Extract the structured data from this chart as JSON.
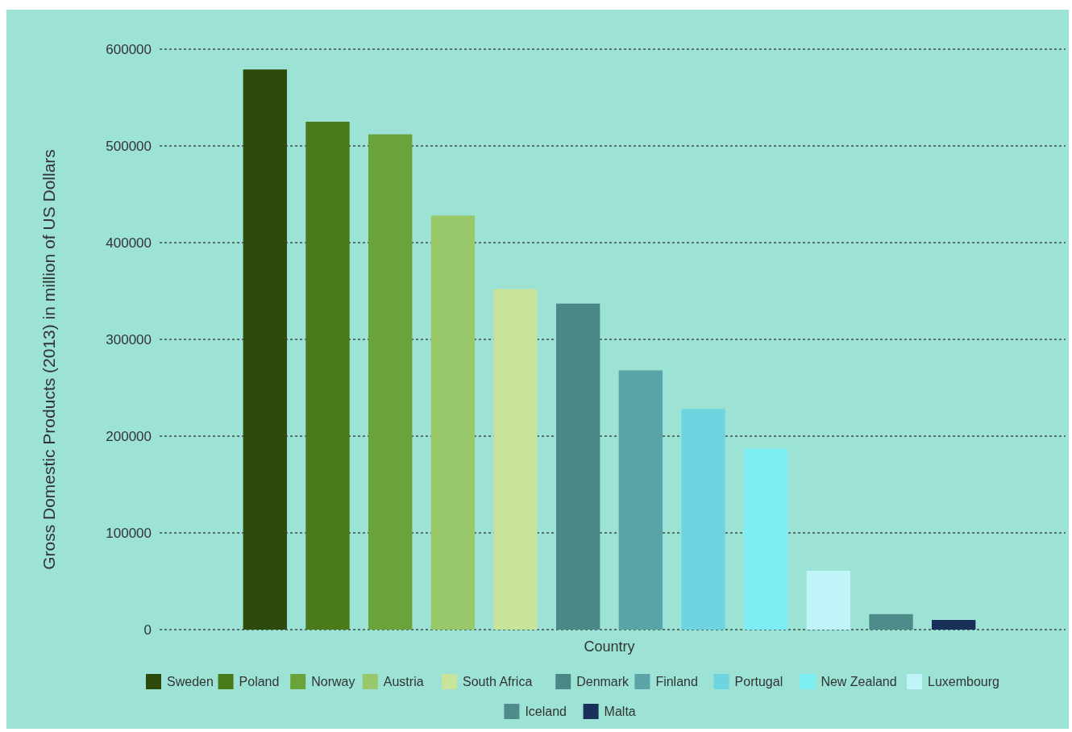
{
  "chart_data": {
    "type": "bar",
    "xlabel": "Country",
    "ylabel": "Gross Domestic Products (2013) in million of US Dollars",
    "categories": [
      null
    ],
    "series": [
      {
        "name": "Sweden",
        "color": "#2c4a0c",
        "values": [
          579000
        ]
      },
      {
        "name": "Poland",
        "color": "#4a7a1a",
        "values": [
          525000
        ]
      },
      {
        "name": "Norway",
        "color": "#6aa33a",
        "values": [
          512000
        ]
      },
      {
        "name": "Austria",
        "color": "#98c86a",
        "values": [
          428000
        ]
      },
      {
        "name": "South Africa",
        "color": "#c8e49a",
        "values": [
          352000
        ]
      },
      {
        "name": "Denmark",
        "color": "#4a8787",
        "values": [
          337000
        ]
      },
      {
        "name": "Finland",
        "color": "#5aa3a6",
        "values": [
          268000
        ]
      },
      {
        "name": "Portugal",
        "color": "#6dd4e0",
        "values": [
          228000
        ]
      },
      {
        "name": "New Zealand",
        "color": "#7eeef5",
        "values": [
          187000
        ]
      },
      {
        "name": "Luxembourg",
        "color": "#c0f4f8",
        "values": [
          61000
        ]
      },
      {
        "name": "Iceland",
        "color": "#4e8c8c",
        "values": [
          16000
        ]
      },
      {
        "name": "Malta",
        "color": "#1a2f5a",
        "values": [
          10000
        ]
      }
    ],
    "ylim": [
      0,
      600000
    ],
    "yticks": [
      0,
      100000,
      200000,
      300000,
      400000,
      500000,
      600000
    ],
    "grid": "y",
    "legend": "bottom"
  }
}
